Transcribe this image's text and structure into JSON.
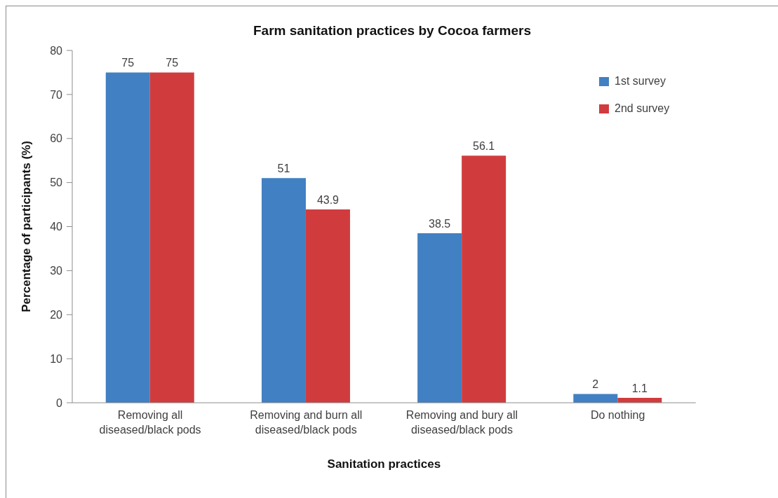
{
  "chart_data": {
    "type": "bar",
    "title": "Farm sanitation practices by Cocoa farmers",
    "xlabel": "Sanitation practices",
    "ylabel": "Percentage of participants (%)",
    "categories": [
      "Removing all diseased/black pods",
      "Removing and burn all diseased/black pods",
      "Removing and bury all diseased/black pods",
      "Do nothing"
    ],
    "series": [
      {
        "name": "1st survey",
        "color": "#4180c2",
        "values": [
          75,
          51,
          38.5,
          2
        ]
      },
      {
        "name": "2nd survey",
        "color": "#d03c3e",
        "values": [
          75,
          43.9,
          56.1,
          1.1
        ]
      }
    ],
    "ylim": [
      0,
      80
    ],
    "yticks": [
      0,
      10,
      20,
      30,
      40,
      50,
      60,
      70,
      80
    ],
    "data_labels": true,
    "legend": "top right"
  }
}
